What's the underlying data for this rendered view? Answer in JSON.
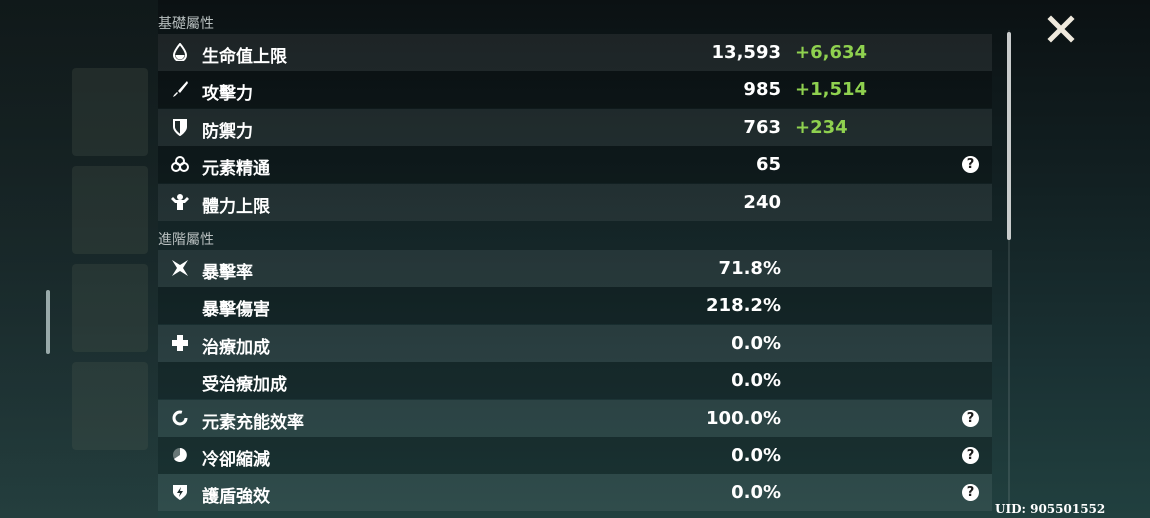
{
  "sections": {
    "basic": "基礎屬性",
    "advanced": "進階屬性"
  },
  "basic": [
    {
      "icon": "hp-drop-icon",
      "label": "生命值上限",
      "value": "13,593",
      "bonus": "+6,634"
    },
    {
      "icon": "sword-icon",
      "label": "攻擊力",
      "value": "985",
      "bonus": "+1,514"
    },
    {
      "icon": "shield-icon",
      "label": "防禦力",
      "value": "763",
      "bonus": "+234"
    },
    {
      "icon": "elemental-mastery-icon",
      "label": "元素精通",
      "value": "65",
      "help": "?"
    },
    {
      "icon": "stamina-icon",
      "label": "體力上限",
      "value": "240"
    }
  ],
  "advanced": [
    {
      "icon": "crit-rate-icon",
      "label": "暴擊率",
      "value": "71.8%"
    },
    {
      "label": "暴擊傷害",
      "value": "218.2%"
    },
    {
      "icon": "healing-cross-icon",
      "label": "治療加成",
      "value": "0.0%"
    },
    {
      "label": "受治療加成",
      "value": "0.0%"
    },
    {
      "icon": "energy-recharge-icon",
      "label": "元素充能效率",
      "value": "100.0%",
      "help": "?"
    },
    {
      "icon": "cooldown-icon",
      "label": "冷卻縮減",
      "value": "0.0%",
      "help": "?"
    },
    {
      "icon": "shield-strength-icon",
      "label": "護盾強效",
      "value": "0.0%",
      "help": "?"
    }
  ],
  "uid": "UID: 905501552",
  "colors": {
    "bonus": "#8fd14f"
  }
}
